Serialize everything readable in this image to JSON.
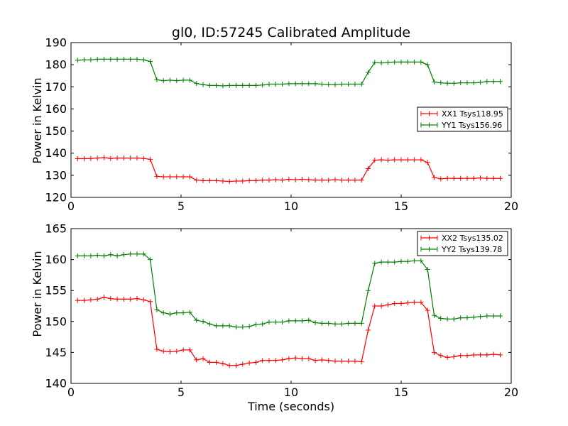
{
  "chart_data": [
    {
      "type": "line",
      "title": "gl0, ID:57245 Calibrated Amplitude",
      "xlabel": "",
      "ylabel": "Power in Kelvin",
      "xlim": [
        0,
        20
      ],
      "ylim": [
        120,
        190
      ],
      "x_ticks": [
        "0",
        "5",
        "10",
        "15",
        "20"
      ],
      "y_ticks": [
        "120",
        "130",
        "140",
        "150",
        "160",
        "170",
        "180",
        "190"
      ],
      "grid": false,
      "legend_position": "center-right",
      "series": [
        {
          "name": "XX1 Tsys118.95",
          "color": "#ff0000",
          "x": [
            0.3,
            0.6,
            0.9,
            1.2,
            1.5,
            1.8,
            2.1,
            2.4,
            2.7,
            3.0,
            3.3,
            3.6,
            3.9,
            4.2,
            4.5,
            4.8,
            5.1,
            5.4,
            5.7,
            6.0,
            6.3,
            6.6,
            6.9,
            7.2,
            7.5,
            7.8,
            8.1,
            8.4,
            8.7,
            9.0,
            9.3,
            9.6,
            9.9,
            10.2,
            10.5,
            10.8,
            11.1,
            11.4,
            11.7,
            12.0,
            12.3,
            12.6,
            12.9,
            13.2,
            13.5,
            13.8,
            14.1,
            14.4,
            14.7,
            15.0,
            15.3,
            15.6,
            15.9,
            16.2,
            16.5,
            16.8,
            17.1,
            17.4,
            17.7,
            18.0,
            18.3,
            18.6,
            18.9,
            19.2,
            19.5
          ],
          "y": [
            137.5,
            137.5,
            137.6,
            137.8,
            138.0,
            137.6,
            137.8,
            137.8,
            137.8,
            137.8,
            137.6,
            137.2,
            129.5,
            129.3,
            129.3,
            129.3,
            129.3,
            129.3,
            127.8,
            127.6,
            127.6,
            127.6,
            127.4,
            127.2,
            127.4,
            127.4,
            127.6,
            127.6,
            127.8,
            127.8,
            128.0,
            127.8,
            128.2,
            128.0,
            128.2,
            128.0,
            127.8,
            127.8,
            127.8,
            128.0,
            127.8,
            127.8,
            127.8,
            127.8,
            133.0,
            136.8,
            137.0,
            136.8,
            137.0,
            137.0,
            137.0,
            137.0,
            137.0,
            135.8,
            129.0,
            128.4,
            128.6,
            128.6,
            128.6,
            128.6,
            128.6,
            128.8,
            128.6,
            128.6,
            128.6
          ]
        },
        {
          "name": "YY1 Tsys156.96",
          "color": "#008000",
          "x": [
            0.3,
            0.6,
            0.9,
            1.2,
            1.5,
            1.8,
            2.1,
            2.4,
            2.7,
            3.0,
            3.3,
            3.6,
            3.9,
            4.2,
            4.5,
            4.8,
            5.1,
            5.4,
            5.7,
            6.0,
            6.3,
            6.6,
            6.9,
            7.2,
            7.5,
            7.8,
            8.1,
            8.4,
            8.7,
            9.0,
            9.3,
            9.6,
            9.9,
            10.2,
            10.5,
            10.8,
            11.1,
            11.4,
            11.7,
            12.0,
            12.3,
            12.6,
            12.9,
            13.2,
            13.5,
            13.8,
            14.1,
            14.4,
            14.7,
            15.0,
            15.3,
            15.6,
            15.9,
            16.2,
            16.5,
            16.8,
            17.1,
            17.4,
            17.7,
            18.0,
            18.3,
            18.6,
            18.9,
            19.2,
            19.5
          ],
          "y": [
            182.0,
            182.2,
            182.2,
            182.5,
            182.5,
            182.5,
            182.5,
            182.5,
            182.5,
            182.5,
            182.2,
            181.5,
            173.2,
            172.8,
            173.0,
            172.8,
            173.0,
            173.0,
            171.5,
            171.0,
            170.6,
            170.6,
            170.4,
            170.6,
            170.6,
            170.6,
            170.6,
            170.6,
            170.8,
            171.2,
            171.2,
            171.2,
            171.4,
            171.4,
            171.4,
            171.4,
            171.4,
            171.2,
            171.0,
            171.0,
            171.2,
            171.2,
            171.2,
            171.2,
            176.5,
            181.0,
            180.8,
            181.0,
            181.2,
            181.2,
            181.2,
            181.2,
            181.2,
            180.0,
            172.2,
            171.8,
            171.6,
            171.6,
            171.8,
            171.8,
            171.8,
            172.0,
            172.4,
            172.4,
            172.4
          ]
        }
      ]
    },
    {
      "type": "line",
      "title": "",
      "xlabel": "Time (seconds)",
      "ylabel": "Power in Kelvin",
      "xlim": [
        0,
        20
      ],
      "ylim": [
        140,
        165
      ],
      "x_ticks": [
        "0",
        "5",
        "10",
        "15",
        "20"
      ],
      "y_ticks": [
        "140",
        "145",
        "150",
        "155",
        "160",
        "165"
      ],
      "grid": false,
      "legend_position": "top-right",
      "series": [
        {
          "name": "XX2 Tsys135.02",
          "color": "#ff0000",
          "x": [
            0.3,
            0.6,
            0.9,
            1.2,
            1.5,
            1.8,
            2.1,
            2.4,
            2.7,
            3.0,
            3.3,
            3.6,
            3.9,
            4.2,
            4.5,
            4.8,
            5.1,
            5.4,
            5.7,
            6.0,
            6.3,
            6.6,
            6.9,
            7.2,
            7.5,
            7.8,
            8.1,
            8.4,
            8.7,
            9.0,
            9.3,
            9.6,
            9.9,
            10.2,
            10.5,
            10.8,
            11.1,
            11.4,
            11.7,
            12.0,
            12.3,
            12.6,
            12.9,
            13.2,
            13.5,
            13.8,
            14.1,
            14.4,
            14.7,
            15.0,
            15.3,
            15.6,
            15.9,
            16.2,
            16.5,
            16.8,
            17.1,
            17.4,
            17.7,
            18.0,
            18.3,
            18.6,
            18.9,
            19.2,
            19.5
          ],
          "y": [
            153.4,
            153.4,
            153.5,
            153.6,
            153.9,
            153.7,
            153.6,
            153.6,
            153.6,
            153.7,
            153.5,
            153.2,
            145.5,
            145.2,
            145.1,
            145.2,
            145.4,
            145.4,
            143.8,
            144.0,
            143.4,
            143.4,
            143.2,
            142.9,
            142.9,
            143.1,
            143.3,
            143.4,
            143.7,
            143.7,
            143.7,
            143.8,
            144.0,
            144.1,
            144.0,
            144.0,
            143.7,
            143.8,
            143.7,
            143.6,
            143.6,
            143.6,
            143.6,
            143.5,
            148.6,
            152.5,
            152.5,
            152.7,
            152.9,
            152.9,
            153.0,
            153.1,
            153.1,
            151.8,
            145.0,
            144.5,
            144.2,
            144.3,
            144.5,
            144.5,
            144.6,
            144.6,
            144.6,
            144.7,
            144.6
          ]
        },
        {
          "name": "YY2 Tsys139.78",
          "color": "#008000",
          "x": [
            0.3,
            0.6,
            0.9,
            1.2,
            1.5,
            1.8,
            2.1,
            2.4,
            2.7,
            3.0,
            3.3,
            3.6,
            3.9,
            4.2,
            4.5,
            4.8,
            5.1,
            5.4,
            5.7,
            6.0,
            6.3,
            6.6,
            6.9,
            7.2,
            7.5,
            7.8,
            8.1,
            8.4,
            8.7,
            9.0,
            9.3,
            9.6,
            9.9,
            10.2,
            10.5,
            10.8,
            11.1,
            11.4,
            11.7,
            12.0,
            12.3,
            12.6,
            12.9,
            13.2,
            13.5,
            13.8,
            14.1,
            14.4,
            14.7,
            15.0,
            15.3,
            15.6,
            15.9,
            16.2,
            16.5,
            16.8,
            17.1,
            17.4,
            17.7,
            18.0,
            18.3,
            18.6,
            18.9,
            19.2,
            19.5
          ],
          "y": [
            160.6,
            160.6,
            160.6,
            160.7,
            160.6,
            160.8,
            160.6,
            160.8,
            160.9,
            160.9,
            160.9,
            160.0,
            151.9,
            151.4,
            151.2,
            151.4,
            151.4,
            151.5,
            150.2,
            150.0,
            149.6,
            149.3,
            149.3,
            149.3,
            149.1,
            149.1,
            149.2,
            149.5,
            149.6,
            149.9,
            149.9,
            149.9,
            150.1,
            150.1,
            150.1,
            150.2,
            149.8,
            149.7,
            149.7,
            149.6,
            149.6,
            149.7,
            149.7,
            149.7,
            155.0,
            159.4,
            159.6,
            159.6,
            159.6,
            159.7,
            159.7,
            159.8,
            159.8,
            158.4,
            151.0,
            150.5,
            150.4,
            150.4,
            150.6,
            150.6,
            150.7,
            150.8,
            150.9,
            150.9,
            150.9
          ]
        }
      ]
    }
  ]
}
